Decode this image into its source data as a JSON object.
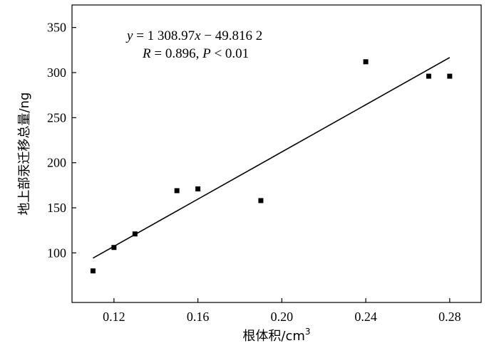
{
  "chart_data": {
    "type": "scatter",
    "xlabel": "根体积/cm",
    "xlabel_sup": "3",
    "ylabel": "地上部汞迁移总量/ng",
    "xlim": [
      0.1,
      0.295
    ],
    "ylim": [
      45,
      375
    ],
    "x_ticks": [
      0.12,
      0.16,
      0.2,
      0.24,
      0.28
    ],
    "x_tick_labels": [
      "0.12",
      "0.16",
      "0.20",
      "0.24",
      "0.28"
    ],
    "y_ticks": [
      100,
      150,
      200,
      250,
      300,
      350
    ],
    "y_tick_labels": [
      "100",
      "150",
      "200",
      "250",
      "300",
      "350"
    ],
    "grid": false,
    "legend": "none",
    "series": [
      {
        "marker": "square",
        "x": [
          0.11,
          0.12,
          0.13,
          0.15,
          0.16,
          0.19,
          0.24,
          0.27,
          0.28
        ],
        "y": [
          80,
          106,
          121,
          169,
          171,
          158,
          312,
          296,
          296
        ]
      }
    ],
    "fit_line": {
      "slope": 1308.97,
      "intercept": -49.8162,
      "x_range": [
        0.11,
        0.28
      ]
    },
    "annotations": {
      "eq_y": "y",
      "eq_mid": " = 1 308.97",
      "eq_x": "x",
      "eq_tail": " − 49.816 2",
      "r_label": "R",
      "r_text": " = 0.896, ",
      "p_label": "P",
      "p_text": " < 0.01"
    }
  }
}
